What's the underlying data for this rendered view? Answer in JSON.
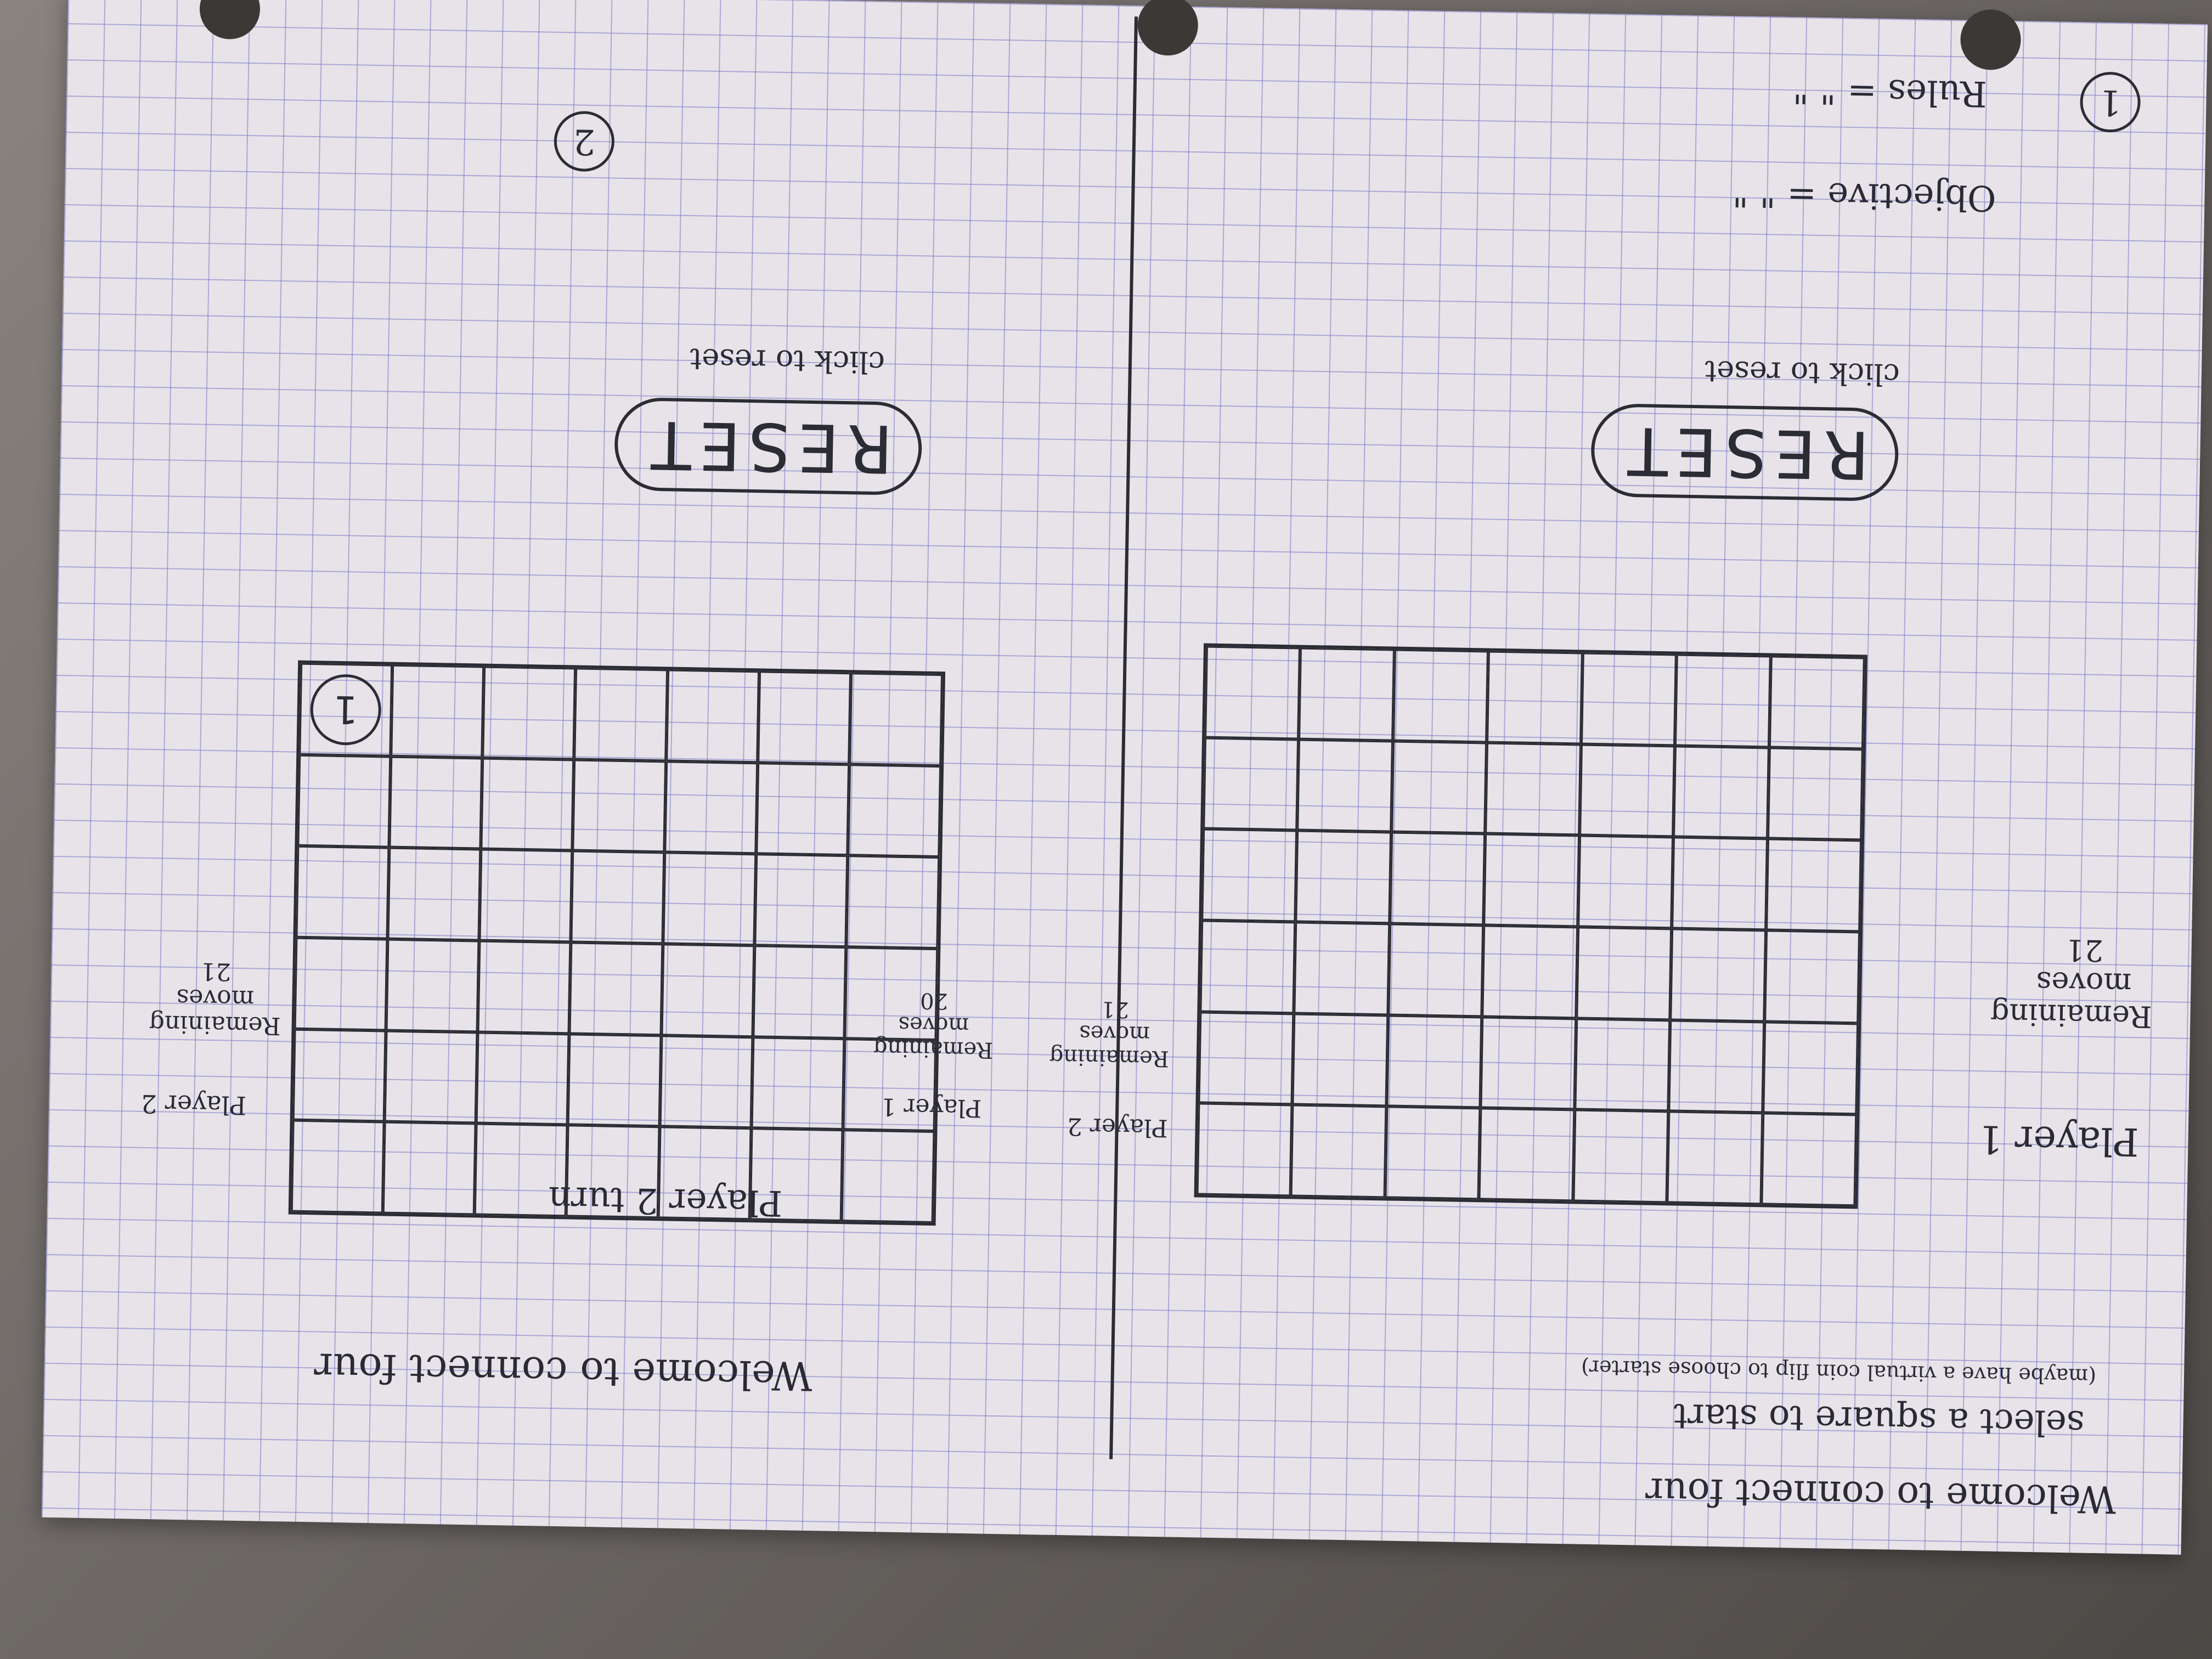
{
  "sketch": {
    "left_screen": {
      "welcome": "Welcome to connect four",
      "instruction": "select a square to start",
      "note": "(maybe have a virtual coin flip to choose starter)",
      "player1_label": "Player 1",
      "player2_label": "Player 2",
      "p1_remaining_label": "Remaining moves",
      "p1_remaining_value": "21",
      "p2_remaining_label": "Remaining moves",
      "p2_remaining_value": "21",
      "reset_label": "RESET",
      "reset_hint": "click to reset",
      "objective": "Objective = \" \"",
      "rules": "Rules = \" \"",
      "step_number": "1"
    },
    "right_screen": {
      "welcome": "Welcome to connect four",
      "turn": "Player 2 turn",
      "player1_label": "Player 1",
      "player2_label": "Player 2",
      "p1_remaining_label": "Remaining moves",
      "p1_remaining_value": "20",
      "p2_remaining_label": "Remaining moves",
      "p2_remaining_value": "21",
      "reset_label": "RESET",
      "reset_hint": "click to reset",
      "token_label": "1",
      "step_number": "2"
    }
  }
}
